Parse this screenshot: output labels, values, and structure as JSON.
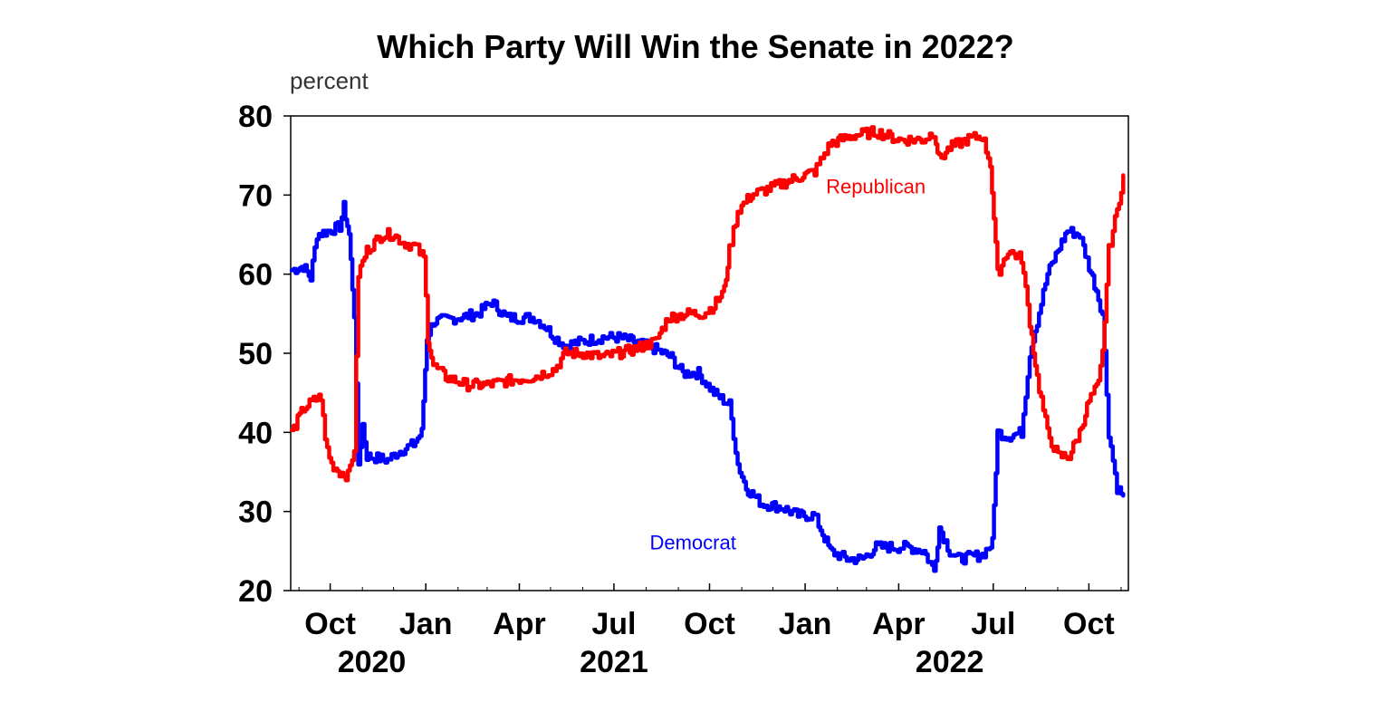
{
  "chart_data": {
    "type": "line",
    "title": "Which Party Will Win the Senate in 2022?",
    "ylabel": "percent",
    "xlabel": "",
    "ylim": [
      20,
      80
    ],
    "yticks": [
      20,
      30,
      40,
      50,
      60,
      70,
      80
    ],
    "xlim": [
      "2020-08-24",
      "2022-11-08"
    ],
    "x_ticks": [
      {
        "date": "2020-10-01",
        "label": "Oct"
      },
      {
        "date": "2021-01-01",
        "label": "Jan"
      },
      {
        "date": "2021-04-01",
        "label": "Apr"
      },
      {
        "date": "2021-07-01",
        "label": "Jul"
      },
      {
        "date": "2021-10-01",
        "label": "Oct"
      },
      {
        "date": "2022-01-01",
        "label": "Jan"
      },
      {
        "date": "2022-04-01",
        "label": "Apr"
      },
      {
        "date": "2022-07-01",
        "label": "Jul"
      },
      {
        "date": "2022-10-01",
        "label": "Oct"
      }
    ],
    "minor_ticks": [
      "2020-09-01",
      "2020-11-01",
      "2020-12-01",
      "2021-02-01",
      "2021-03-01",
      "2021-05-01",
      "2021-06-01",
      "2021-08-01",
      "2021-09-01",
      "2021-11-01",
      "2021-12-01",
      "2022-02-01",
      "2022-03-01",
      "2022-05-01",
      "2022-06-01",
      "2022-08-01",
      "2022-09-01",
      "2022-11-01"
    ],
    "year_labels": [
      {
        "date": "2020-11-10",
        "label": "2020"
      },
      {
        "date": "2021-07-01",
        "label": "2021"
      },
      {
        "date": "2022-05-20",
        "label": "2022"
      }
    ],
    "grid": false,
    "series": [
      {
        "name": "Democrat",
        "color": "#0000ff",
        "label_at": {
          "date": "2021-09-15",
          "value": 26
        },
        "points": [
          [
            "2020-08-25",
            60.5
          ],
          [
            "2020-09-05",
            61
          ],
          [
            "2020-09-12",
            59.5
          ],
          [
            "2020-09-18",
            65
          ],
          [
            "2020-09-30",
            65.5
          ],
          [
            "2020-10-10",
            66
          ],
          [
            "2020-10-14",
            68.5
          ],
          [
            "2020-10-19",
            65
          ],
          [
            "2020-10-24",
            55
          ],
          [
            "2020-10-28",
            36
          ],
          [
            "2020-11-01",
            41
          ],
          [
            "2020-11-05",
            37
          ],
          [
            "2020-11-25",
            36.5
          ],
          [
            "2020-12-05",
            37.5
          ],
          [
            "2020-12-20",
            38.5
          ],
          [
            "2020-12-28",
            40
          ],
          [
            "2021-01-02",
            52
          ],
          [
            "2021-01-08",
            54
          ],
          [
            "2021-02-01",
            54.5
          ],
          [
            "2021-02-20",
            55
          ],
          [
            "2021-03-05",
            56.5
          ],
          [
            "2021-03-20",
            54.5
          ],
          [
            "2021-04-15",
            54.5
          ],
          [
            "2021-04-25",
            53.5
          ],
          [
            "2021-05-05",
            52
          ],
          [
            "2021-05-15",
            51
          ],
          [
            "2021-06-01",
            51.5
          ],
          [
            "2021-06-20",
            52
          ],
          [
            "2021-07-05",
            52
          ],
          [
            "2021-07-20",
            51.5
          ],
          [
            "2021-08-10",
            50.5
          ],
          [
            "2021-08-25",
            49.5
          ],
          [
            "2021-09-05",
            47.5
          ],
          [
            "2021-09-20",
            47.5
          ],
          [
            "2021-10-05",
            45
          ],
          [
            "2021-10-20",
            43.5
          ],
          [
            "2021-10-28",
            36
          ],
          [
            "2021-11-05",
            33
          ],
          [
            "2021-11-20",
            31
          ],
          [
            "2021-12-10",
            30.5
          ],
          [
            "2021-12-25",
            29.5
          ],
          [
            "2022-01-10",
            29.5
          ],
          [
            "2022-01-25",
            25
          ],
          [
            "2022-02-10",
            24
          ],
          [
            "2022-02-25",
            24
          ],
          [
            "2022-03-10",
            25.5
          ],
          [
            "2022-04-10",
            25.5
          ],
          [
            "2022-04-25",
            25
          ],
          [
            "2022-05-05",
            22.5
          ],
          [
            "2022-05-10",
            28
          ],
          [
            "2022-05-20",
            25
          ],
          [
            "2022-05-28",
            24
          ],
          [
            "2022-06-20",
            24.5
          ],
          [
            "2022-06-30",
            26
          ],
          [
            "2022-07-05",
            40
          ],
          [
            "2022-07-15",
            39.5
          ],
          [
            "2022-07-28",
            40
          ],
          [
            "2022-08-05",
            50
          ],
          [
            "2022-08-12",
            54
          ],
          [
            "2022-08-22",
            60
          ],
          [
            "2022-09-01",
            63
          ],
          [
            "2022-09-10",
            65.5
          ],
          [
            "2022-09-22",
            65
          ],
          [
            "2022-10-01",
            61
          ],
          [
            "2022-10-08",
            58
          ],
          [
            "2022-10-14",
            55
          ],
          [
            "2022-10-20",
            40
          ],
          [
            "2022-10-28",
            33
          ],
          [
            "2022-11-03",
            32
          ]
        ]
      },
      {
        "name": "Republican",
        "color": "#ff0000",
        "label_at": {
          "date": "2022-03-10",
          "value": 71
        },
        "points": [
          [
            "2020-08-25",
            40
          ],
          [
            "2020-09-05",
            43
          ],
          [
            "2020-09-15",
            44
          ],
          [
            "2020-09-22",
            44.5
          ],
          [
            "2020-09-26",
            39
          ],
          [
            "2020-10-02",
            36
          ],
          [
            "2020-10-10",
            35
          ],
          [
            "2020-10-18",
            34.5
          ],
          [
            "2020-10-24",
            38
          ],
          [
            "2020-10-28",
            60
          ],
          [
            "2020-11-05",
            63
          ],
          [
            "2020-11-20",
            65
          ],
          [
            "2020-12-01",
            65
          ],
          [
            "2020-12-10",
            64
          ],
          [
            "2020-12-22",
            63.5
          ],
          [
            "2020-12-30",
            62
          ],
          [
            "2021-01-03",
            52
          ],
          [
            "2021-01-08",
            48.5
          ],
          [
            "2021-01-20",
            47
          ],
          [
            "2021-02-10",
            46
          ],
          [
            "2021-03-01",
            46
          ],
          [
            "2021-03-20",
            46.5
          ],
          [
            "2021-04-15",
            47
          ],
          [
            "2021-04-25",
            47.5
          ],
          [
            "2021-05-05",
            48
          ],
          [
            "2021-05-15",
            50
          ],
          [
            "2021-06-01",
            50
          ],
          [
            "2021-06-20",
            49.5
          ],
          [
            "2021-07-05",
            50
          ],
          [
            "2021-07-20",
            50.5
          ],
          [
            "2021-08-10",
            51.5
          ],
          [
            "2021-08-22",
            54.5
          ],
          [
            "2021-09-10",
            55
          ],
          [
            "2021-09-25",
            55
          ],
          [
            "2021-10-05",
            56
          ],
          [
            "2021-10-15",
            58
          ],
          [
            "2021-10-20",
            63
          ],
          [
            "2021-10-28",
            68
          ],
          [
            "2021-11-10",
            70
          ],
          [
            "2021-12-01",
            71
          ],
          [
            "2021-12-20",
            72
          ],
          [
            "2022-01-10",
            73
          ],
          [
            "2022-01-25",
            76.5
          ],
          [
            "2022-02-15",
            77.5
          ],
          [
            "2022-03-10",
            78
          ],
          [
            "2022-04-01",
            77
          ],
          [
            "2022-04-25",
            77
          ],
          [
            "2022-05-05",
            78
          ],
          [
            "2022-05-10",
            74.5
          ],
          [
            "2022-05-20",
            76
          ],
          [
            "2022-06-05",
            77
          ],
          [
            "2022-06-20",
            77.5
          ],
          [
            "2022-06-28",
            74
          ],
          [
            "2022-07-05",
            60
          ],
          [
            "2022-07-15",
            63
          ],
          [
            "2022-07-28",
            62
          ],
          [
            "2022-08-05",
            54
          ],
          [
            "2022-08-12",
            47
          ],
          [
            "2022-08-22",
            40
          ],
          [
            "2022-09-01",
            37
          ],
          [
            "2022-09-12",
            37
          ],
          [
            "2022-09-22",
            40
          ],
          [
            "2022-10-01",
            44
          ],
          [
            "2022-10-10",
            46
          ],
          [
            "2022-10-14",
            50
          ],
          [
            "2022-10-20",
            63
          ],
          [
            "2022-10-28",
            68
          ],
          [
            "2022-11-03",
            72.5
          ]
        ]
      }
    ]
  }
}
